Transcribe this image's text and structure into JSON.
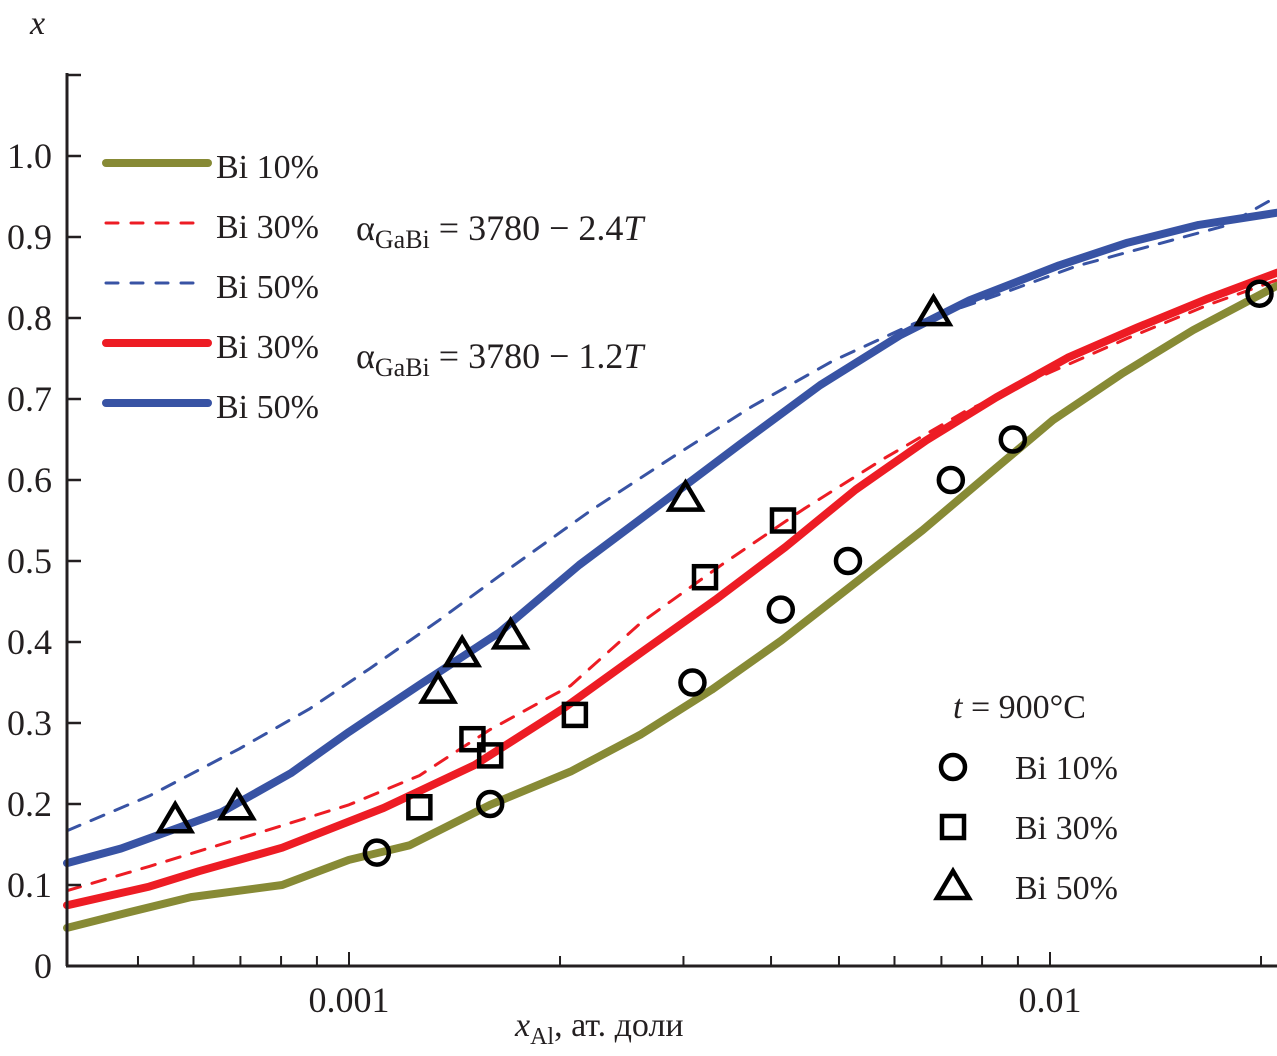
{
  "chart_data": {
    "type": "line",
    "title": "",
    "xlabel": "x_Al, ат. доли",
    "xlabel_var": "x",
    "xlabel_sub": "Al",
    "xlabel_rest": ", ат. доли",
    "ylabel": "x",
    "xscale": "log",
    "xlim": [
      0.000396,
      0.0211
    ],
    "ylim": [
      0,
      1.1
    ],
    "grid": false,
    "x_major_ticks": [
      {
        "value": 0.001,
        "label": "0.001"
      },
      {
        "value": 0.01,
        "label": "0.01"
      }
    ],
    "x_minor_ticks": [
      0.0005,
      0.0006,
      0.0007,
      0.0008,
      0.0009,
      0.002,
      0.003,
      0.004,
      0.005,
      0.006,
      0.007,
      0.008,
      0.009,
      0.02
    ],
    "y_ticks": [
      {
        "value": 0,
        "label": "0"
      },
      {
        "value": 0.1,
        "label": "0.1"
      },
      {
        "value": 0.2,
        "label": "0.2"
      },
      {
        "value": 0.3,
        "label": "0.3"
      },
      {
        "value": 0.4,
        "label": "0.4"
      },
      {
        "value": 0.5,
        "label": "0.5"
      },
      {
        "value": 0.6,
        "label": "0.6"
      },
      {
        "value": 0.7,
        "label": "0.7"
      },
      {
        "value": 0.8,
        "label": "0.8"
      },
      {
        "value": 0.9,
        "label": "0.9"
      },
      {
        "value": 1.0,
        "label": "1.0"
      },
      {
        "value": 1.1,
        "label": ""
      }
    ],
    "series": [
      {
        "name": "Bi 10%",
        "style": "solid",
        "color": "#878a35",
        "group": "alpha2",
        "x": [
          0.000396,
          0.000473,
          0.000595,
          0.000803,
          0.001,
          0.00122,
          0.00159,
          0.00207,
          0.00261,
          0.00329,
          0.00414,
          0.00522,
          0.00658,
          0.0083,
          0.0101,
          0.0127,
          0.016,
          0.0211
        ],
        "y": [
          0.047,
          0.064,
          0.085,
          0.1,
          0.131,
          0.149,
          0.199,
          0.24,
          0.286,
          0.341,
          0.402,
          0.47,
          0.538,
          0.612,
          0.674,
          0.732,
          0.785,
          0.84
        ]
      },
      {
        "name": "Bi 30%",
        "style": "dashed",
        "color": "#ed1c24",
        "group": "alpha1",
        "x": [
          0.000396,
          0.000519,
          0.000747,
          0.001,
          0.00126,
          0.00159,
          0.00207,
          0.00261,
          0.00341,
          0.00445,
          0.00581,
          0.00758,
          0.00989,
          0.0129,
          0.0168,
          0.0211
        ],
        "y": [
          0.093,
          0.123,
          0.165,
          0.199,
          0.235,
          0.292,
          0.346,
          0.424,
          0.496,
          0.564,
          0.627,
          0.685,
          0.731,
          0.775,
          0.816,
          0.847
        ]
      },
      {
        "name": "Bi 50%",
        "style": "dashed",
        "color": "#3853a4",
        "group": "alpha1",
        "x": [
          0.000396,
          0.000519,
          0.000697,
          0.000877,
          0.00107,
          0.00134,
          0.00169,
          0.00221,
          0.00288,
          0.00376,
          0.0049,
          0.00639,
          0.00834,
          0.0109,
          0.0142,
          0.0178,
          0.0211
        ],
        "y": [
          0.167,
          0.21,
          0.268,
          0.317,
          0.367,
          0.426,
          0.49,
          0.562,
          0.627,
          0.691,
          0.747,
          0.793,
          0.827,
          0.864,
          0.891,
          0.914,
          0.95
        ]
      },
      {
        "name": "Bi 30%",
        "style": "solid",
        "color": "#ed1c24",
        "group": "alpha2",
        "x": [
          0.000396,
          0.000519,
          0.000611,
          0.000803,
          0.00112,
          0.00151,
          0.00203,
          0.00264,
          0.00333,
          0.00419,
          0.00528,
          0.00666,
          0.00838,
          0.0106,
          0.0133,
          0.0168,
          0.0211
        ],
        "y": [
          0.075,
          0.098,
          0.117,
          0.146,
          0.195,
          0.248,
          0.319,
          0.39,
          0.452,
          0.517,
          0.588,
          0.649,
          0.702,
          0.751,
          0.788,
          0.824,
          0.856
        ]
      },
      {
        "name": "Bi 50%",
        "style": "solid",
        "color": "#3853a4",
        "group": "alpha2",
        "x": [
          0.000396,
          0.000473,
          0.000658,
          0.000826,
          0.001,
          0.00126,
          0.00164,
          0.00213,
          0.00277,
          0.00361,
          0.0047,
          0.00612,
          0.00768,
          0.0103,
          0.0129,
          0.0163,
          0.0211
        ],
        "y": [
          0.127,
          0.145,
          0.19,
          0.238,
          0.289,
          0.347,
          0.412,
          0.495,
          0.569,
          0.644,
          0.717,
          0.779,
          0.822,
          0.865,
          0.893,
          0.915,
          0.93
        ]
      }
    ],
    "scatter_series": [
      {
        "name": "Bi 10%",
        "marker": "circle",
        "x": [
          0.001096,
          0.00159,
          0.00309,
          0.00413,
          0.00515,
          0.00722,
          0.00885,
          0.0199
        ],
        "y": [
          0.14,
          0.2,
          0.35,
          0.44,
          0.5,
          0.6,
          0.65,
          0.83
        ]
      },
      {
        "name": "Bi 30%",
        "marker": "square",
        "x": [
          0.00126,
          0.0015,
          0.00159,
          0.0021,
          0.00322,
          0.00416
        ],
        "y": [
          0.196,
          0.28,
          0.26,
          0.31,
          0.48,
          0.55
        ]
      },
      {
        "name": "Bi 50%",
        "marker": "triangle",
        "x": [
          0.000565,
          0.000692,
          0.00134,
          0.00145,
          0.0017,
          0.00302,
          0.00682
        ],
        "y": [
          0.18,
          0.196,
          0.34,
          0.385,
          0.407,
          0.577,
          0.806
        ]
      }
    ],
    "legend_lines": {
      "placement": "top-left",
      "entries": [
        {
          "label": "Bi 10%",
          "style": "solid",
          "color": "#878a35"
        },
        {
          "label": "Bi 30%",
          "style": "dashed",
          "color": "#ed1c24"
        },
        {
          "label": "Bi 50%",
          "style": "dashed",
          "color": "#3853a4"
        },
        {
          "label": "Bi 30%",
          "style": "solid",
          "color": "#ed1c24"
        },
        {
          "label": "Bi 50%",
          "style": "solid",
          "color": "#3853a4"
        }
      ]
    },
    "annotations": {
      "alpha1": {
        "symbol": "α",
        "sub": "GaBi",
        "rest": " = 3780 − 2.4",
        "var": "T"
      },
      "alpha2": {
        "symbol": "α",
        "sub": "GaBi",
        "rest": " = 3780 − 1.2",
        "var": "T"
      }
    },
    "legend_markers": {
      "placement": "bottom-right",
      "title_var": "t",
      "title_rest": " = 900°C",
      "entries": [
        {
          "label": "Bi 10%",
          "marker": "circle"
        },
        {
          "label": "Bi 30%",
          "marker": "square"
        },
        {
          "label": "Bi 50%",
          "marker": "triangle"
        }
      ]
    }
  }
}
